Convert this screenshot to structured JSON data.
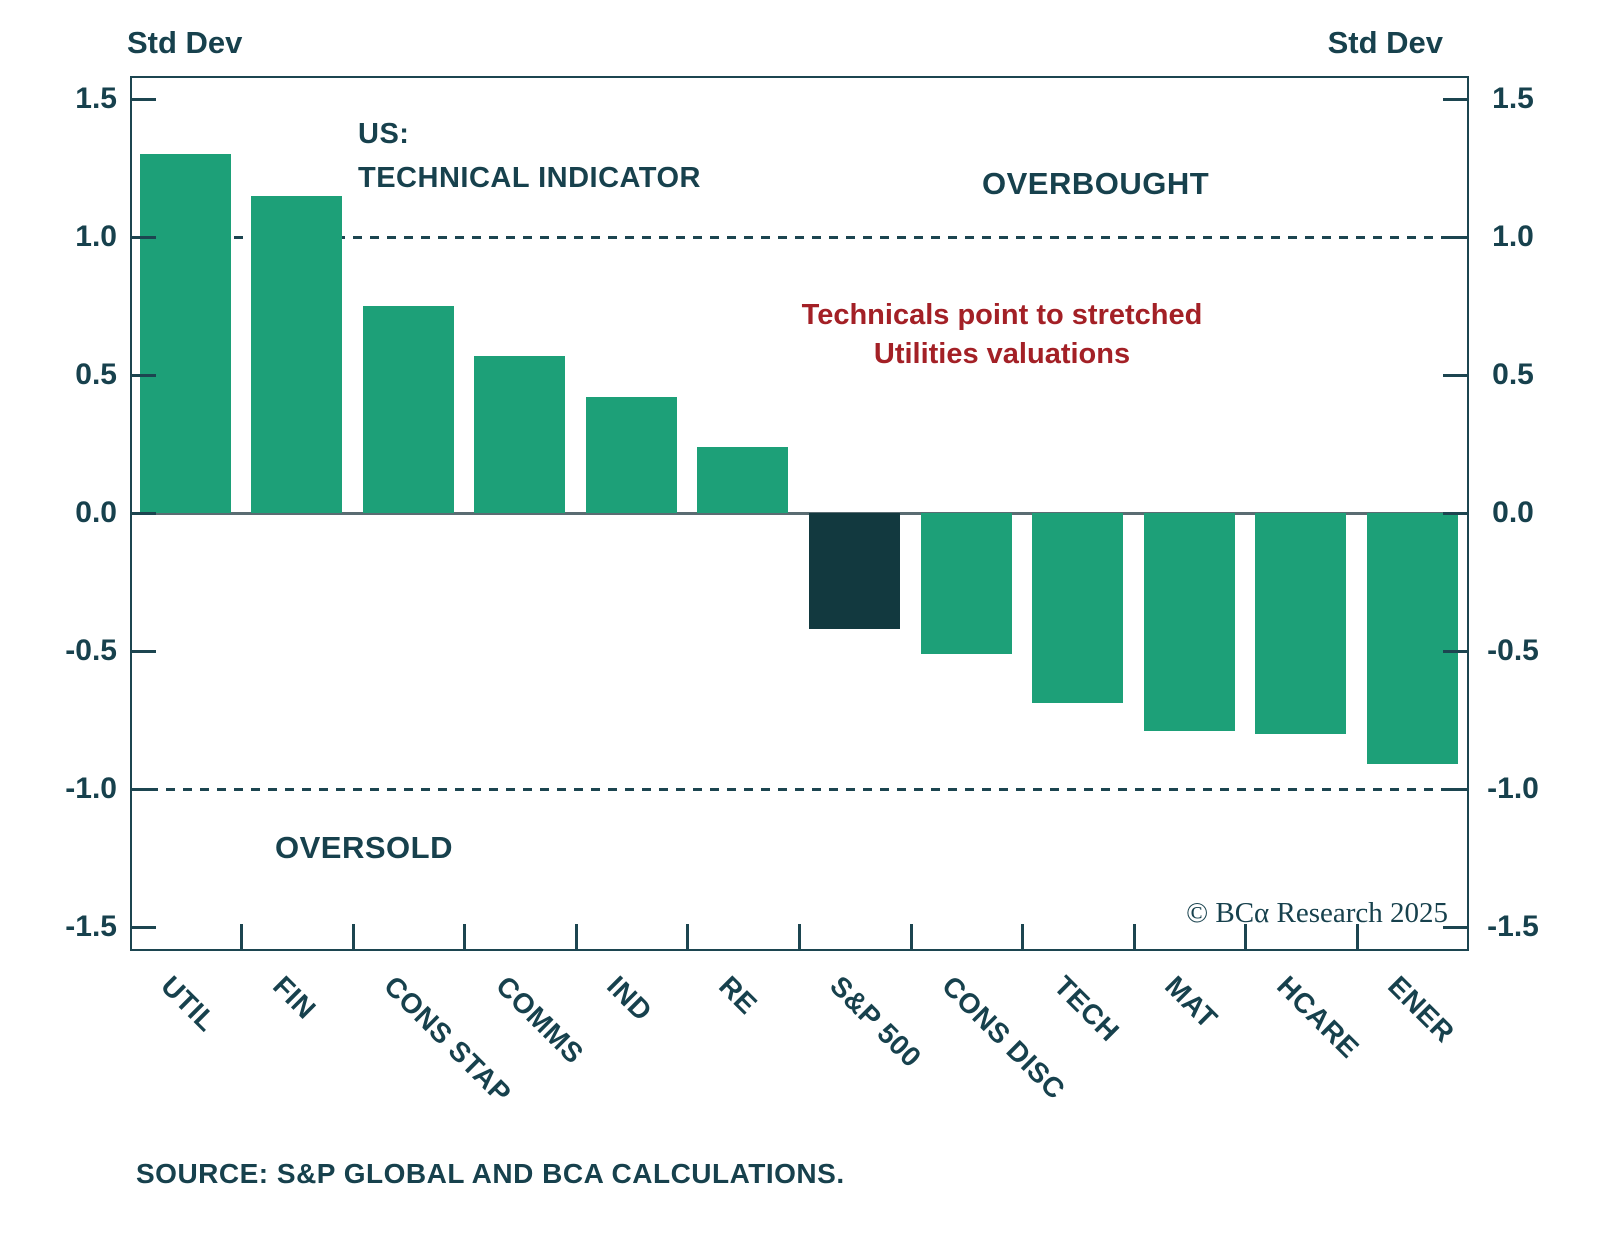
{
  "chart_data": {
    "type": "bar",
    "title_lines": [
      "US:",
      "TECHNICAL INDICATOR"
    ],
    "y_axis_title_left": "Std Dev",
    "y_axis_title_right": "Std Dev",
    "categories": [
      "UTIL",
      "FIN",
      "CONS STAP",
      "COMMS",
      "IND",
      "RE",
      "S&P 500",
      "CONS DISC",
      "TECH",
      "MAT",
      "HCARE",
      "ENER"
    ],
    "values": [
      1.3,
      1.15,
      0.75,
      0.57,
      0.42,
      0.24,
      -0.42,
      -0.51,
      -0.69,
      -0.79,
      -0.8,
      -0.91
    ],
    "highlight_category": "S&P 500",
    "ylabel": "Std Dev",
    "ylim": [
      -1.6,
      1.6
    ],
    "y_ticks": [
      1.5,
      1.0,
      0.5,
      0.0,
      -0.5,
      -1.0,
      -1.5
    ],
    "grid": "off",
    "regions": {
      "overbought_label": "OVERBOUGHT",
      "overbought_level": 1.0,
      "oversold_label": "OVERSOLD",
      "oversold_level": -1.0
    },
    "annotation_lines": [
      "Technicals point to stretched",
      "Utilities valuations"
    ],
    "copyright": "© BCα Research 2025",
    "source": "SOURCE: S&P GLOBAL AND BCA CALCULATIONS.",
    "colors": {
      "bar": "#1DA078",
      "highlight_bar": "#12393F",
      "text": "#17414D",
      "annotation": "#A32026",
      "frame": "#1C4550",
      "zero_line": "#5A6C72"
    }
  }
}
